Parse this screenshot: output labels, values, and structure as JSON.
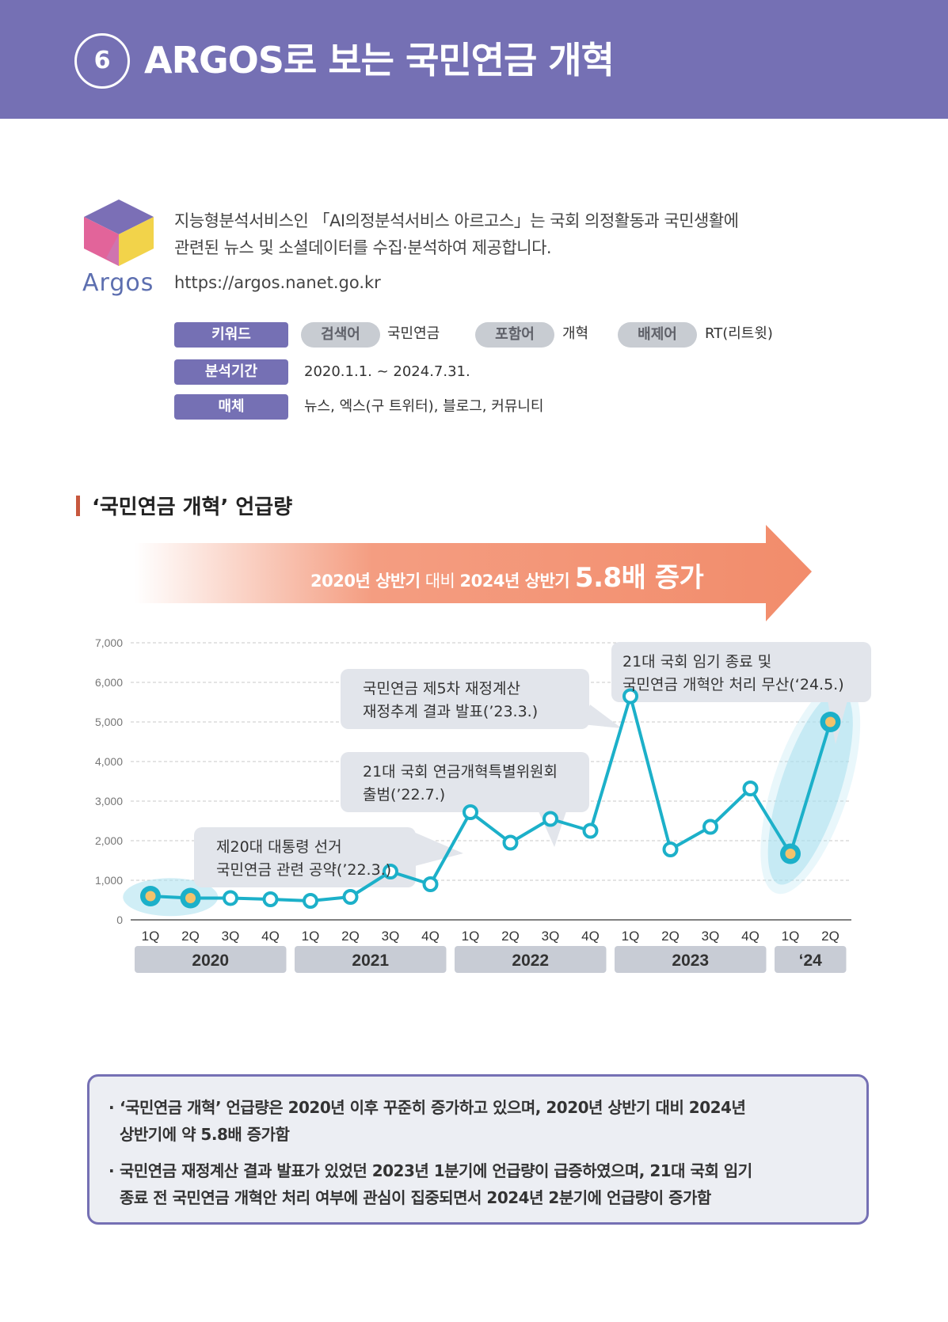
{
  "header": {
    "number": "6",
    "title": "ARGOS로 보는 국민연금 개혁"
  },
  "intro": {
    "logo_text": "Argos",
    "description_line1": "지능형분석서비스인 「AI의정분석서비스 아르고스」는 국회 의정활동과 국민생활에",
    "description_line2": "관련된 뉴스 및 소셜데이터를 수집·분석하여 제공합니다.",
    "url": "https://argos.nanet.go.kr"
  },
  "search": {
    "keyword_label": "키워드",
    "search_term_label": "검색어",
    "search_term": "국민연금",
    "include_label": "포함어",
    "include_term": "개혁",
    "exclude_label": "배제어",
    "exclude_term": "RT(리트윗)",
    "period_label": "분석기간",
    "period": "2020.1.1. ~ 2024.7.31.",
    "media_label": "매체",
    "media": "뉴스, 엑스(구 트위터), 블로그, 커뮤니티"
  },
  "section_title": "‘국민연금 개혁’ 언급량",
  "banner": {
    "part1": "2020년 상반기",
    "part2": " 대비 ",
    "part3": "2024년 상반기 ",
    "part4": "5.8배 증가"
  },
  "colors": {
    "header": "#7570b4",
    "line": "#1cb0c9",
    "highlight": "#a9e0ee",
    "point_fill": "#f4c26b",
    "arrow": "#f28c6b"
  },
  "chart_data": {
    "type": "line",
    "categories": [
      "1Q",
      "2Q",
      "3Q",
      "4Q",
      "1Q",
      "2Q",
      "3Q",
      "4Q",
      "1Q",
      "2Q",
      "3Q",
      "4Q",
      "1Q",
      "2Q",
      "3Q",
      "4Q",
      "1Q",
      "2Q"
    ],
    "years": [
      "2020",
      "2021",
      "2022",
      "2023",
      "‘24"
    ],
    "values": [
      600,
      550,
      550,
      520,
      480,
      580,
      1220,
      900,
      2720,
      1950,
      2550,
      2250,
      5650,
      1780,
      2350,
      3320,
      1670,
      5000
    ],
    "ylim": [
      0,
      7000
    ],
    "yticks": [
      "7,000",
      "6,000",
      "5,000",
      "4,000",
      "3,000",
      "2,000",
      "1,000",
      "0"
    ],
    "grid": true,
    "annotations": [
      {
        "line1": "제20대 대통령 선거",
        "line2": "국민연금 관련 공약(’22.3.)"
      },
      {
        "line1": "21대 국회 연금개혁특별위원회",
        "line2": "출범(’22.7.)"
      },
      {
        "line1": "국민연금 제5차 재정계산",
        "line2": "재정추계 결과 발표(’23.3.)"
      },
      {
        "line1": "21대 국회 임기 종료 및",
        "line2": "국민연금 개혁안 처리 무산(‘24.5.)"
      }
    ]
  },
  "notes": [
    {
      "line1": "‘국민연금 개혁’ 언급량은 2020년 이후 꾸준히 증가하고 있으며, 2020년 상반기 대비 2024년",
      "line2": "상반기에 약 5.8배 증가함"
    },
    {
      "line1": "국민연금 재정계산 결과 발표가 있었던 2023년 1분기에 언급량이 급증하였으며, 21대 국회 임기",
      "line2": "종료 전 국민연금 개혁안 처리 여부에 관심이 집중되면서 2024년 2분기에 언급량이 증가함"
    }
  ]
}
